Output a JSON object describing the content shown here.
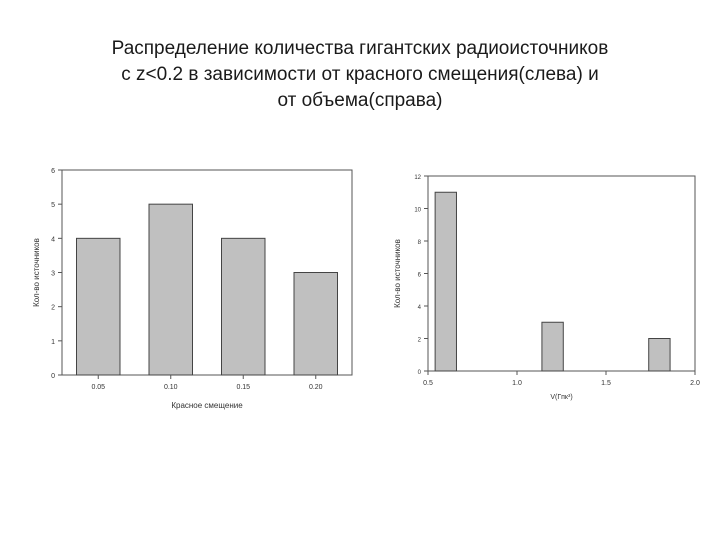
{
  "slide": {
    "title_lines": [
      "Распределение количества гигантских радиоисточников",
      "с z<0.2 в зависимости от красного смещения(слева) и",
      "от объема(справа)"
    ]
  },
  "chart_data": [
    {
      "type": "bar",
      "categories": [
        "0.05",
        "0.10",
        "0.15",
        "0.20"
      ],
      "values": [
        4,
        5,
        4,
        3
      ],
      "xlabel": "Красное смещение",
      "ylabel": "Кол-во источников",
      "ylim": [
        0,
        6
      ],
      "yticks": [
        "0",
        "1",
        "2",
        "3",
        "4",
        "5",
        "6"
      ],
      "bar_color": "#c0c0c0",
      "grid": false
    },
    {
      "type": "bar",
      "x": [
        0.6,
        1.2,
        1.8
      ],
      "values": [
        11,
        3,
        2
      ],
      "bin_width": 0.12,
      "xlabel": "V(Гпк³)",
      "ylabel": "Кол-во источников",
      "xlim": [
        0.5,
        2.0
      ],
      "ylim": [
        0,
        12
      ],
      "xticks": [
        "0.5",
        "1.0",
        "1.5",
        "2.0"
      ],
      "yticks": [
        "0",
        "2",
        "4",
        "6",
        "8",
        "10",
        "12"
      ],
      "bar_color": "#c0c0c0",
      "grid": false
    }
  ]
}
